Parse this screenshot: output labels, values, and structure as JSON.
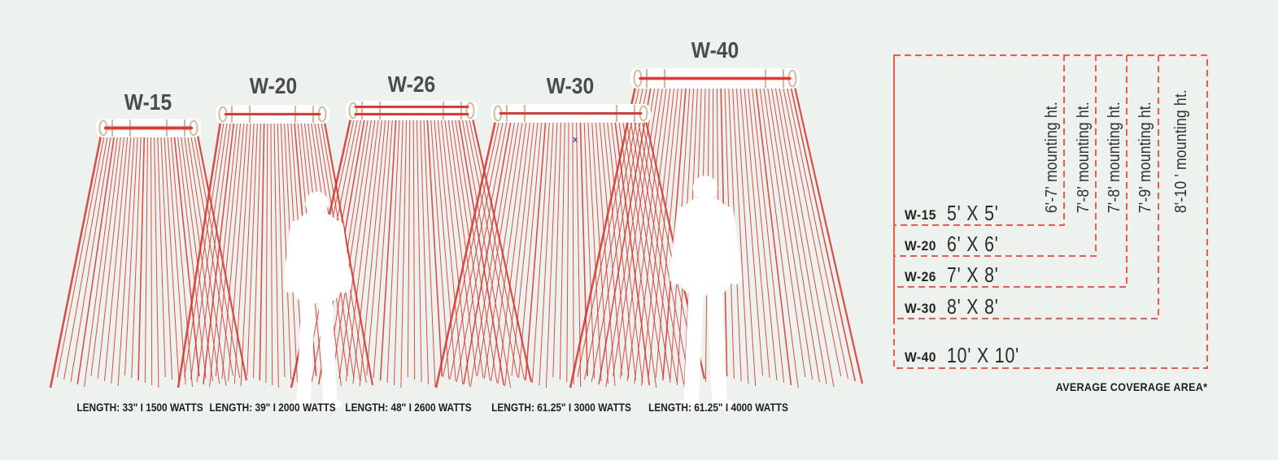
{
  "colors": {
    "background": "#eef2ee",
    "ray_red": "#d6372f",
    "element_red": "#e63730",
    "heater_body": "#ffffff",
    "trim_tan": "#cdbd9f",
    "dashed_red": "#ec5a50",
    "title_gray": "#4c4c4c",
    "text_dark": "#1f1f1d",
    "silhouette_white": "#ffffff",
    "artifact_blue": "#4853cb"
  },
  "heaters": [
    {
      "model": "W-15",
      "spec": "LENGTH: 33\" I 1500 WATTS",
      "coverage": "5' X 5'",
      "mounting_height": "6'-7' mounting ht."
    },
    {
      "model": "W-20",
      "spec": "LENGTH: 39\" I 2000 WATTS",
      "coverage": "6' X 6'",
      "mounting_height": "7'-8' mounting ht."
    },
    {
      "model": "W-26",
      "spec": "LENGTH: 48\" I 2600 WATTS",
      "coverage": "7' X 8'",
      "mounting_height": "7'-8' mounting ht."
    },
    {
      "model": "W-30",
      "spec": "LENGTH: 61.25\" I 3000 WATTS",
      "coverage": "8' X 8'",
      "mounting_height": "7'-9' mounting ht."
    },
    {
      "model": "W-40",
      "spec": "LENGTH: 61.25\" I 4000 WATTS",
      "coverage": "10' X 10'",
      "mounting_height": "8'-10 ' mounting ht."
    }
  ],
  "legend": {
    "footnote": "AVERAGE COVERAGE AREA*"
  },
  "artifact_mark": "x"
}
